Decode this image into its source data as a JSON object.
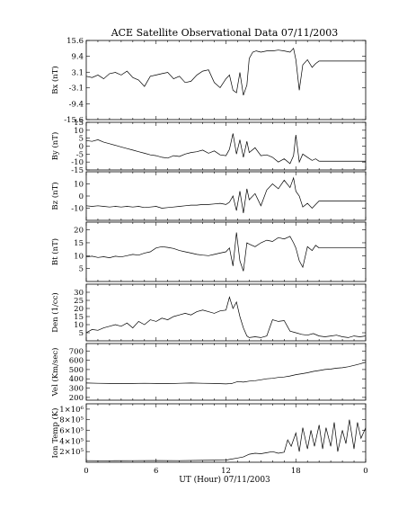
{
  "chart_data": {
    "type": "line",
    "title": "ACE Satellite Observational Data   07/11/2003",
    "xlabel": "UT (Hour)   07/11/2003",
    "x_ticks": [
      "0",
      "6",
      "12",
      "18",
      "0"
    ],
    "x_range": [
      0,
      24
    ],
    "grid": false,
    "panels": [
      {
        "id": "bx",
        "ylabel": "Bx (nT)",
        "ylim": [
          -15.6,
          15.6
        ],
        "y_ticks": [
          15.6,
          9.4,
          3.1,
          -3.1,
          -9.4,
          -15.6
        ],
        "y_tick_labels": [
          "15.6",
          "9.4",
          "3.1",
          "-3.1",
          "-9.4",
          "-15.6"
        ],
        "fill_after": 20.0,
        "fill_value": 7.5,
        "series": {
          "x": [
            0,
            0.5,
            1,
            1.5,
            2,
            2.5,
            3,
            3.5,
            4,
            4.5,
            5,
            5.5,
            6,
            6.5,
            7,
            7.5,
            8,
            8.5,
            9,
            9.5,
            10,
            10.5,
            11,
            11.5,
            12,
            12.3,
            12.6,
            12.9,
            13.2,
            13.5,
            13.8,
            14,
            14.3,
            14.6,
            15,
            15.5,
            16,
            16.5,
            17,
            17.5,
            17.8,
            18,
            18.3,
            18.6,
            19,
            19.4,
            19.7,
            20
          ],
          "y": [
            1.5,
            1.0,
            2.0,
            0.5,
            2.5,
            3.0,
            2.0,
            3.5,
            1.0,
            0.0,
            -2.5,
            1.5,
            2.0,
            2.5,
            3.0,
            0.5,
            1.5,
            -1.0,
            -0.5,
            2.0,
            3.5,
            4.0,
            -1.0,
            -3.0,
            0.5,
            2.0,
            -4.0,
            -5.0,
            3.0,
            -6.0,
            -2.0,
            8.5,
            11.0,
            11.5,
            11.0,
            11.5,
            11.5,
            11.8,
            11.5,
            11.0,
            12.5,
            8.0,
            -4.0,
            6.0,
            8.0,
            5.0,
            6.5,
            7.5
          ]
        }
      },
      {
        "id": "by",
        "ylabel": "By (nT)",
        "ylim": [
          -15,
          15
        ],
        "y_ticks": [
          15,
          10,
          5,
          0,
          -5,
          -10,
          -15
        ],
        "y_tick_labels": [
          "15",
          "10",
          "5",
          "0",
          "-5",
          "-10",
          "-15"
        ],
        "fill_after": 20.0,
        "fill_value": -9.5,
        "series": {
          "x": [
            0,
            0.5,
            1,
            1.5,
            2,
            2.5,
            3,
            3.5,
            4,
            4.5,
            5,
            5.5,
            6,
            6.5,
            7,
            7.5,
            8,
            8.5,
            9,
            9.5,
            10,
            10.5,
            11,
            11.5,
            12,
            12.3,
            12.6,
            12.9,
            13.2,
            13.5,
            13.8,
            14,
            14.5,
            15,
            15.5,
            16,
            16.5,
            17,
            17.5,
            17.8,
            18,
            18.3,
            18.6,
            19,
            19.4,
            19.7,
            20
          ],
          "y": [
            3.5,
            3.0,
            4.0,
            2.5,
            1.5,
            0.5,
            -0.5,
            -1.5,
            -2.5,
            -3.5,
            -4.5,
            -5.5,
            -6.0,
            -7.0,
            -7.5,
            -6.0,
            -6.5,
            -5.0,
            -4.0,
            -3.5,
            -2.5,
            -4.5,
            -3.0,
            -5.5,
            -6.0,
            -2.0,
            8.0,
            -5.0,
            4.0,
            -7.0,
            3.0,
            -4.0,
            -1.0,
            -6.0,
            -5.5,
            -7.0,
            -10.0,
            -8.0,
            -11.0,
            -6.0,
            7.0,
            -10.0,
            -5.0,
            -7.0,
            -9.0,
            -8.0,
            -9.5
          ]
        }
      },
      {
        "id": "bz",
        "ylabel": "Bz (nT)",
        "ylim": [
          -20,
          20
        ],
        "y_ticks": [
          10,
          0,
          -10
        ],
        "y_tick_labels": [
          "10",
          "0",
          "-10"
        ],
        "fill_after": 20.0,
        "fill_value": -4.0,
        "series": {
          "x": [
            0,
            0.5,
            1,
            1.5,
            2,
            2.5,
            3,
            3.5,
            4,
            4.5,
            5,
            5.5,
            6,
            6.5,
            7,
            7.5,
            8,
            8.5,
            9,
            9.5,
            10,
            10.5,
            11,
            11.5,
            12,
            12.3,
            12.6,
            12.9,
            13.2,
            13.5,
            13.8,
            14,
            14.5,
            15,
            15.5,
            16,
            16.5,
            17,
            17.5,
            17.8,
            18,
            18.3,
            18.6,
            19,
            19.4,
            19.7,
            20
          ],
          "y": [
            -8.0,
            -8.5,
            -8.0,
            -8.5,
            -9.0,
            -8.5,
            -9.0,
            -8.5,
            -9.0,
            -8.5,
            -9.5,
            -9.0,
            -8.5,
            -10.0,
            -9.5,
            -9.0,
            -8.5,
            -8.0,
            -7.5,
            -7.5,
            -7.0,
            -7.0,
            -6.5,
            -6.0,
            -7.0,
            -5.0,
            0.0,
            -12.0,
            4.0,
            -14.0,
            6.0,
            -3.0,
            2.0,
            -8.0,
            5.0,
            10.0,
            6.0,
            13.0,
            7.0,
            15.0,
            4.0,
            0.0,
            -9.0,
            -6.0,
            -10.0,
            -7.0,
            -4.0
          ]
        }
      },
      {
        "id": "bt",
        "ylabel": "Bt (nT)",
        "ylim": [
          0,
          23
        ],
        "y_ticks": [
          20,
          15,
          10,
          5
        ],
        "y_tick_labels": [
          "20",
          "15",
          "10",
          "5"
        ],
        "fill_after": 20.0,
        "fill_value": 13.0,
        "series": {
          "x": [
            0,
            0.5,
            1,
            1.5,
            2,
            2.5,
            3,
            3.5,
            4,
            4.5,
            5,
            5.5,
            6,
            6.5,
            7,
            7.5,
            8,
            8.5,
            9,
            9.5,
            10,
            10.5,
            11,
            11.5,
            12,
            12.3,
            12.6,
            12.9,
            13.2,
            13.5,
            13.8,
            14,
            14.5,
            15,
            15.5,
            16,
            16.5,
            17,
            17.5,
            17.8,
            18,
            18.3,
            18.6,
            19,
            19.4,
            19.7,
            20
          ],
          "y": [
            9.5,
            9.8,
            9.3,
            9.6,
            9.2,
            9.8,
            9.5,
            10.0,
            10.5,
            10.2,
            11.0,
            11.5,
            13.0,
            13.5,
            13.2,
            12.8,
            12.0,
            11.5,
            11.0,
            10.5,
            10.2,
            10.0,
            10.5,
            11.0,
            11.5,
            13.0,
            6.0,
            19.0,
            8.0,
            4.0,
            15.0,
            14.5,
            13.5,
            15.0,
            16.0,
            15.5,
            17.0,
            16.5,
            17.5,
            15.0,
            13.0,
            8.0,
            5.5,
            13.5,
            12.0,
            14.0,
            13.0
          ]
        }
      },
      {
        "id": "den",
        "ylabel": "Den (1/cc)",
        "ylim": [
          0,
          35
        ],
        "y_ticks": [
          30,
          25,
          20,
          15,
          10,
          5
        ],
        "y_tick_labels": [
          "30",
          "25",
          "20",
          "15",
          "10",
          "5"
        ],
        "series": {
          "x": [
            0,
            0.5,
            1,
            1.5,
            2,
            2.5,
            3,
            3.5,
            4,
            4.5,
            5,
            5.5,
            6,
            6.5,
            7,
            7.5,
            8,
            8.5,
            9,
            9.5,
            10,
            10.5,
            11,
            11.5,
            12,
            12.3,
            12.6,
            12.9,
            13.2,
            13.5,
            13.8,
            14,
            14.5,
            15,
            15.5,
            16,
            16.5,
            17,
            17.5,
            18,
            18.5,
            19,
            19.5,
            20,
            20.5,
            21,
            21.5,
            22,
            22.5,
            23,
            23.5,
            24
          ],
          "y": [
            5.0,
            7.0,
            6.5,
            8.0,
            9.0,
            10.0,
            9.0,
            11.0,
            8.0,
            12.0,
            10.0,
            13.0,
            12.0,
            14.0,
            13.0,
            15.0,
            16.0,
            17.0,
            16.0,
            18.0,
            19.0,
            18.0,
            17.0,
            18.5,
            19.0,
            27.0,
            20.0,
            24.0,
            15.0,
            8.0,
            3.0,
            2.0,
            2.5,
            2.0,
            3.0,
            13.0,
            12.0,
            12.5,
            6.0,
            5.0,
            4.0,
            3.5,
            4.5,
            3.0,
            2.5,
            3.0,
            3.5,
            2.5,
            2.0,
            3.0,
            2.5,
            3.0
          ]
        }
      },
      {
        "id": "vel",
        "ylabel": "Vel (Km/sec)",
        "ylim": [
          170,
          780
        ],
        "y_ticks": [
          700,
          600,
          500,
          400,
          300,
          200
        ],
        "y_tick_labels": [
          "700",
          "600",
          "500",
          "400",
          "300",
          "200"
        ],
        "series": {
          "x": [
            0,
            1,
            2,
            3,
            4,
            5,
            6,
            7,
            8,
            9,
            10,
            11,
            12,
            12.5,
            13,
            13.5,
            14,
            14.5,
            15,
            15.5,
            16,
            16.5,
            17,
            17.5,
            18,
            18.5,
            19,
            19.5,
            20,
            20.5,
            21,
            21.5,
            22,
            22.5,
            23,
            23.5,
            24
          ],
          "y": [
            355,
            352,
            350,
            348,
            350,
            352,
            350,
            348,
            352,
            355,
            352,
            350,
            345,
            350,
            370,
            365,
            375,
            380,
            390,
            400,
            405,
            415,
            420,
            430,
            445,
            455,
            465,
            480,
            490,
            500,
            505,
            515,
            520,
            530,
            545,
            560,
            580
          ]
        }
      },
      {
        "id": "temp",
        "ylabel": "Ion Temp (K)",
        "ylim": [
          0,
          1100000
        ],
        "y_ticks": [
          1000000,
          800000,
          600000,
          400000,
          200000
        ],
        "y_tick_labels": [
          "1×10⁶",
          "8×10⁵",
          "6×10⁵",
          "4×10⁵",
          "2×10⁵"
        ],
        "series": {
          "x": [
            0,
            2,
            4,
            6,
            8,
            10,
            12,
            13,
            13.5,
            14,
            14.5,
            15,
            15.5,
            16,
            16.5,
            17,
            17.3,
            17.6,
            18,
            18.3,
            18.6,
            19,
            19.3,
            19.6,
            20,
            20.3,
            20.6,
            21,
            21.3,
            21.6,
            22,
            22.3,
            22.6,
            23,
            23.3,
            23.6,
            24
          ],
          "y": [
            30000,
            28000,
            30000,
            32000,
            30000,
            35000,
            40000,
            80000,
            100000,
            150000,
            170000,
            160000,
            180000,
            200000,
            170000,
            190000,
            420000,
            300000,
            550000,
            200000,
            650000,
            250000,
            600000,
            300000,
            700000,
            250000,
            650000,
            300000,
            750000,
            200000,
            600000,
            350000,
            800000,
            250000,
            750000,
            450000,
            650000
          ]
        }
      }
    ]
  }
}
